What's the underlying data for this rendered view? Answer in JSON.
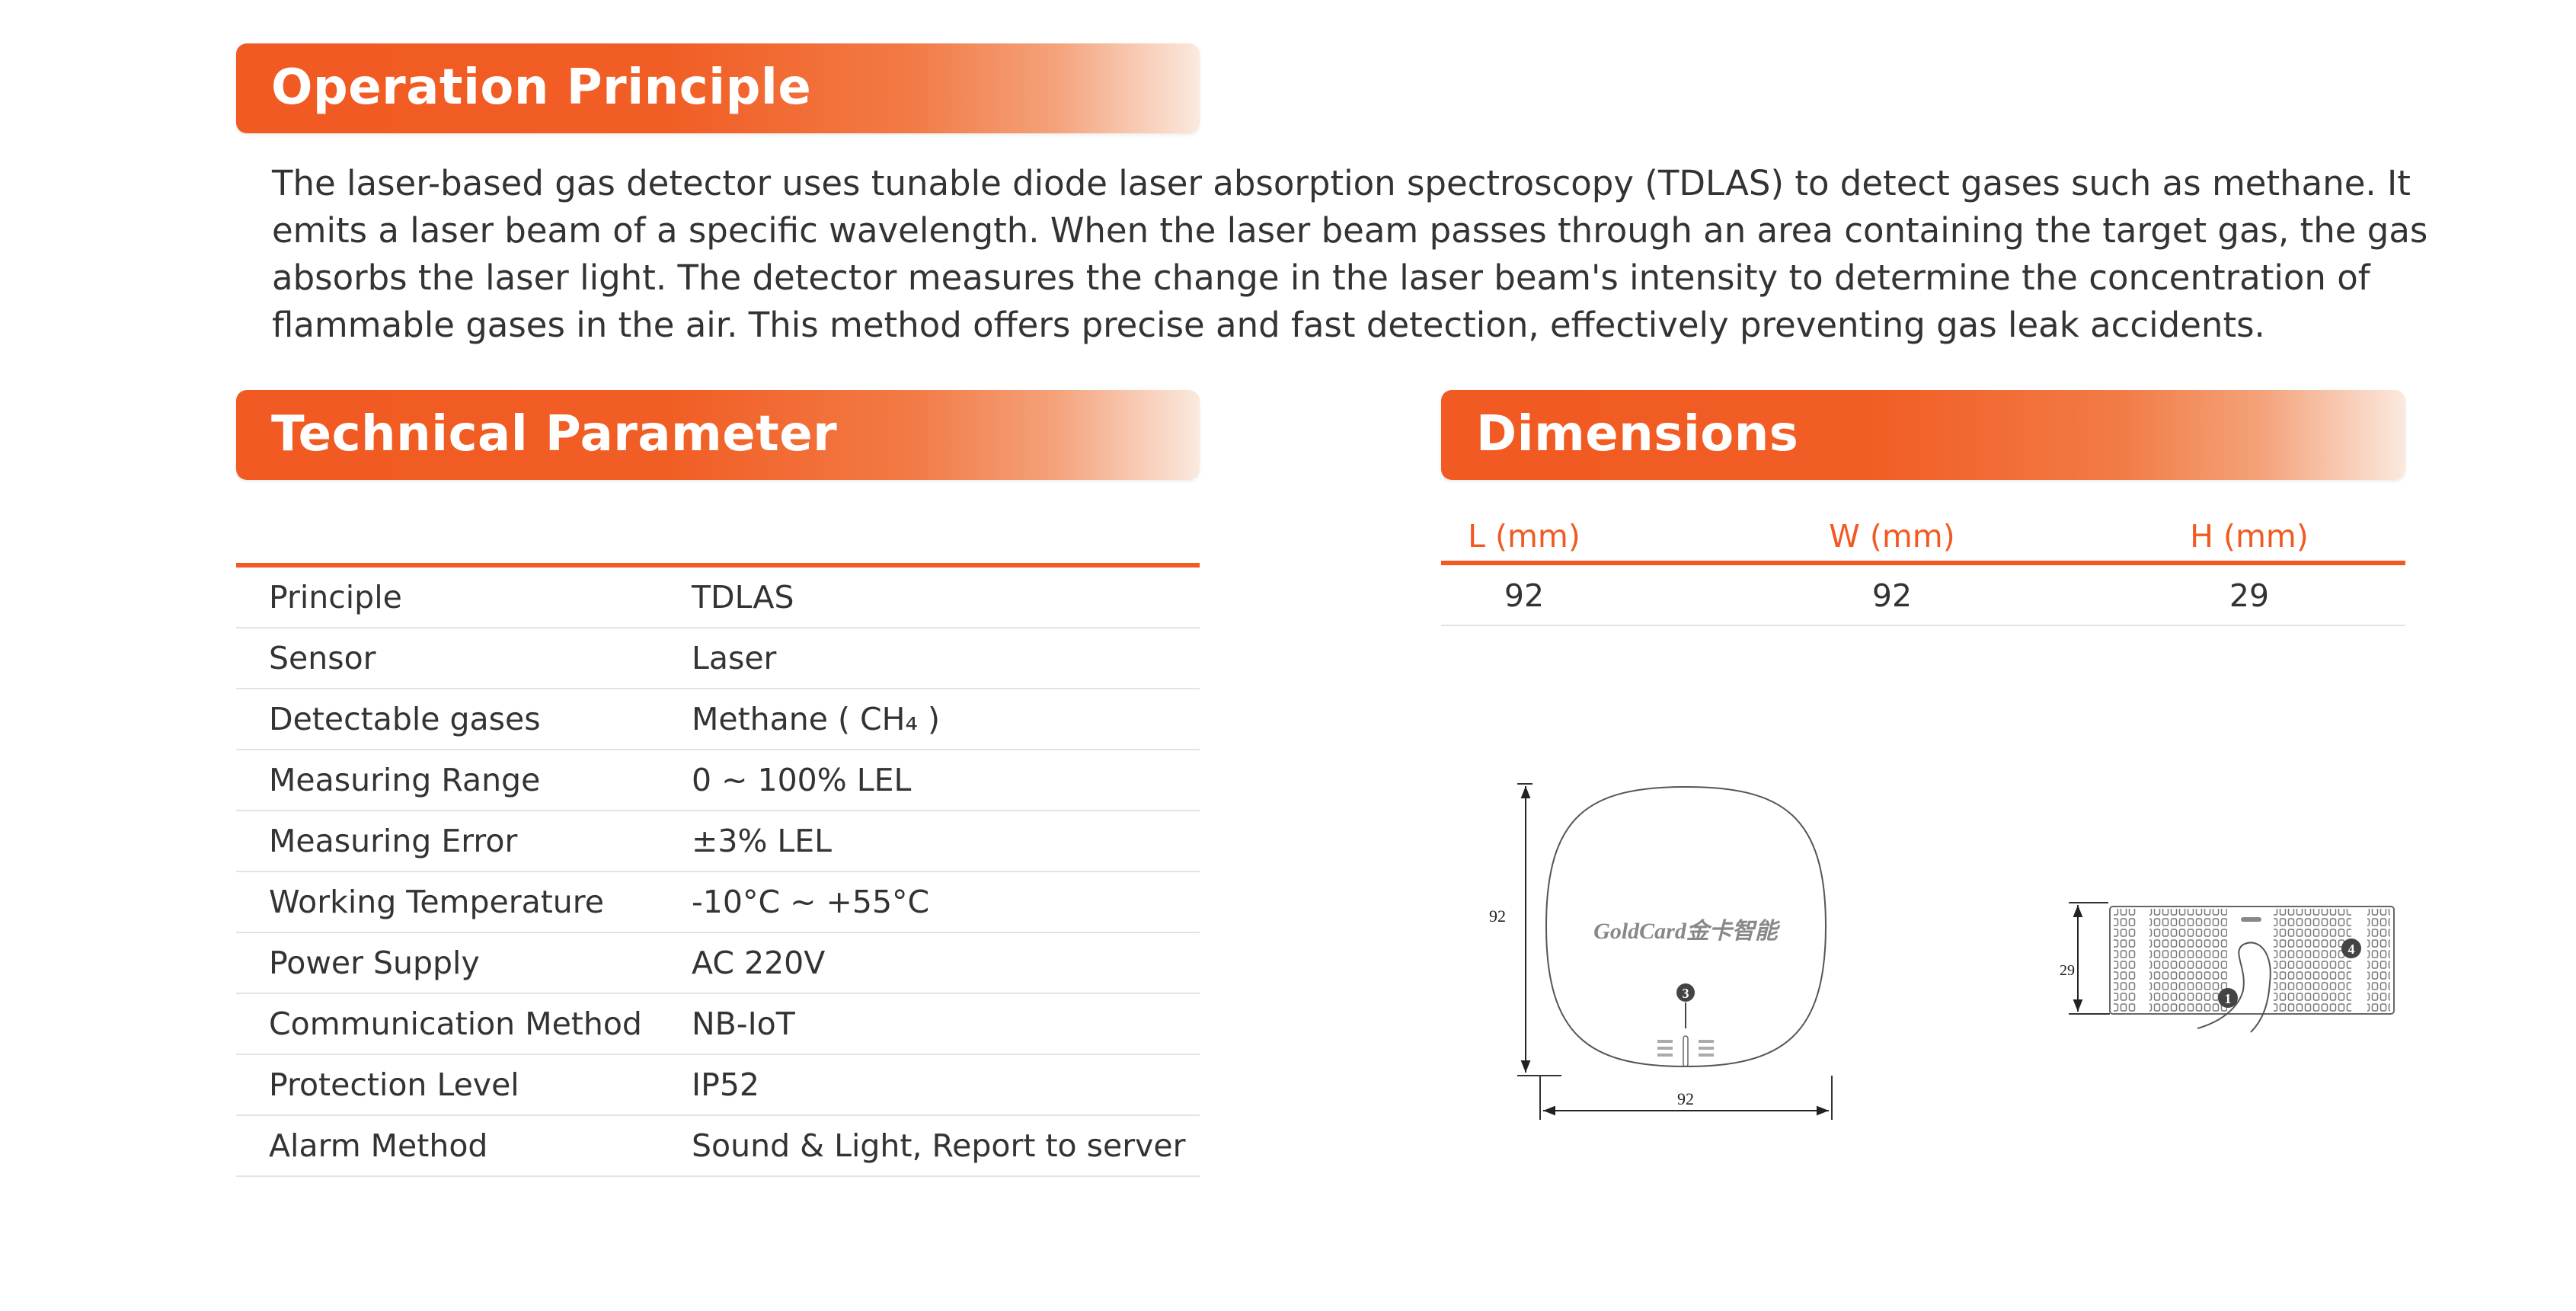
{
  "operation_principle": {
    "title": "Operation Principle",
    "text": "The laser-based gas detector uses tunable diode laser absorption spectroscopy (TDLAS) to detect gases such as methane. It emits a laser beam of a specific wavelength. When the laser beam passes through an area containing the target gas, the gas absorbs the laser light. The detector measures the change in the laser beam's intensity to determine the concentration of flammable gases in the air. This method offers precise and fast detection, effectively preventing gas leak accidents."
  },
  "technical_parameter": {
    "title": "Technical Parameter",
    "rows": [
      {
        "label": "Principle",
        "value": "TDLAS"
      },
      {
        "label": "Sensor",
        "value": "Laser"
      },
      {
        "label": "Detectable gases",
        "value": "Methane ( CH₄ )"
      },
      {
        "label": "Measuring Range",
        "value": "0 ~ 100% LEL"
      },
      {
        "label": "Measuring Error",
        "value": "±3% LEL"
      },
      {
        "label": "Working Temperature",
        "value": "-10°C ~ +55°C"
      },
      {
        "label": "Power Supply",
        "value": "AC 220V"
      },
      {
        "label": "Communication Method",
        "value": "NB-IoT"
      },
      {
        "label": "Protection Level",
        "value": "IP52"
      },
      {
        "label": "Alarm Method",
        "value": "Sound & Light, Report to server"
      }
    ]
  },
  "dimensions": {
    "title": "Dimensions",
    "headers": [
      "L (mm)",
      "W (mm)",
      "H (mm)"
    ],
    "values": [
      "92",
      "92",
      "29"
    ],
    "drawing": {
      "front_height_label": "92",
      "front_width_label": "92",
      "side_height_label": "29",
      "logo": "GoldCard金卡智能",
      "callouts": [
        "3",
        "1",
        "4"
      ]
    }
  },
  "colors": {
    "accent": "#f15a22",
    "text": "#333333"
  }
}
